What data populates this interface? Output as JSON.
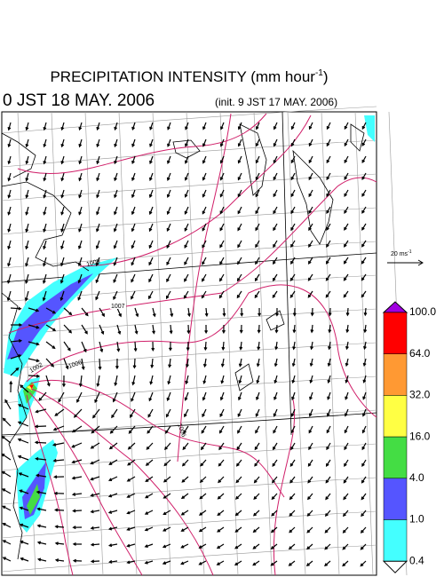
{
  "header": {
    "title": "PRECIPITATION INTENSITY (mm hour",
    "title_exponent": "-1",
    "title_close": ")",
    "valid_time": "0 JST 18 MAY. 2006",
    "init_time": "(init. 9 JST 17 MAY. 2006)"
  },
  "vector_legend": {
    "label": "20 ms",
    "exponent": "-1"
  },
  "colorbar": {
    "labels": [
      "100.0",
      "64.0",
      "32.0",
      "16.0",
      "4.0",
      "1.0",
      "0.4"
    ],
    "colors": [
      "#ff0000",
      "#ff9933",
      "#ffff44",
      "#44dd44",
      "#5555ff",
      "#44ffff"
    ],
    "top_color": "#a000e0",
    "bottom_color": "#ffffff"
  },
  "contour_labels": [
    "1007",
    "1005",
    "1002",
    "1006",
    "1006"
  ]
}
